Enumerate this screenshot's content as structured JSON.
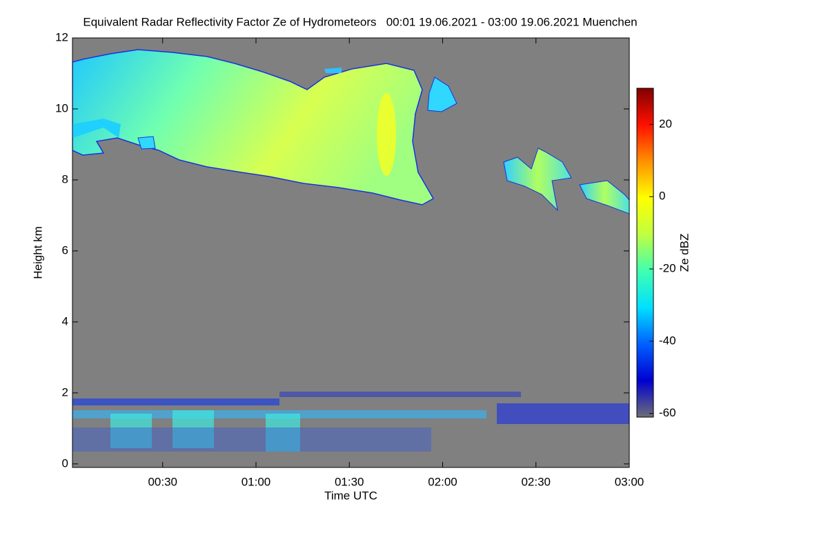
{
  "chart_data": {
    "type": "heatmap",
    "title": "Equivalent Radar Reflectivity Factor Ze of Hydrometeors   00:01 19.06.2021 - 03:00 19.06.2021 Muenchen",
    "x_label": "Time UTC",
    "y_label": "Height km",
    "xlim": [
      "00:01",
      "03:00"
    ],
    "xticks": [
      "00:30",
      "01:00",
      "01:30",
      "02:00",
      "02:30",
      "03:00"
    ],
    "ylim": [
      -0.1,
      12
    ],
    "yticks": [
      0,
      2,
      4,
      6,
      8,
      10,
      12
    ],
    "background": "#808080",
    "colorbar": {
      "label": "Ze dBZ",
      "lim": [
        -61,
        30
      ],
      "ticks": [
        20,
        0,
        -20,
        -40,
        -60
      ],
      "colors": [
        "#6e6e78",
        "#0000d0",
        "#0060ff",
        "#00e0ff",
        "#40ffb0",
        "#c0ff40",
        "#ffff00",
        "#ff9000",
        "#ff1000",
        "#800000"
      ]
    }
  }
}
